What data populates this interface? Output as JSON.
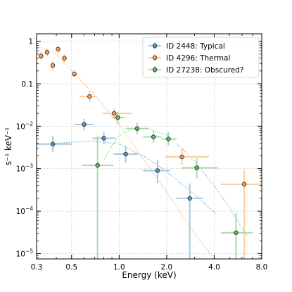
{
  "chart_data": {
    "type": "scatter",
    "title": "",
    "xlabel": "Energy (keV)",
    "ylabel": "s⁻¹ keV⁻¹",
    "xscale": "log",
    "yscale": "log",
    "xlim": [
      0.3,
      8.0
    ],
    "ylim": [
      7.5e-06,
      1.5
    ],
    "x_ticks": [
      0.3,
      0.5,
      1.0,
      2.0,
      4.0,
      8.0
    ],
    "x_tick_labels": [
      "0.3",
      "0.5",
      "1.0",
      "2.0",
      "4.0",
      "8.0"
    ],
    "y_ticks": [
      1,
      0.1,
      0.01,
      0.001,
      0.0001,
      1e-05
    ],
    "y_tick_labels": [
      {
        "base": "1",
        "exp": ""
      },
      {
        "base": "0.1",
        "exp": ""
      },
      {
        "base": "10",
        "exp": "−2"
      },
      {
        "base": "10",
        "exp": "−3"
      },
      {
        "base": "10",
        "exp": "−4"
      },
      {
        "base": "10",
        "exp": "−5"
      }
    ],
    "grid": true,
    "legend_position": "top-right",
    "series": [
      {
        "name": "ID 2448: Typical",
        "color": "#1f77b4",
        "points": [
          {
            "x": 0.38,
            "y": 0.0038,
            "xlo": 0.3,
            "xhi": 0.5,
            "ylo": 0.0025,
            "yhi": 0.0058
          },
          {
            "x": 0.6,
            "y": 0.011,
            "xlo": 0.52,
            "xhi": 0.68,
            "ylo": 0.008,
            "yhi": 0.015
          },
          {
            "x": 0.8,
            "y": 0.0052,
            "xlo": 0.68,
            "xhi": 0.95,
            "ylo": 0.0038,
            "yhi": 0.0072
          },
          {
            "x": 1.1,
            "y": 0.0022,
            "xlo": 0.92,
            "xhi": 1.32,
            "ylo": 0.0014,
            "yhi": 0.0034
          },
          {
            "x": 1.75,
            "y": 0.0009,
            "xlo": 1.42,
            "xhi": 2.1,
            "ylo": 0.00045,
            "yhi": 0.0016
          },
          {
            "x": 2.8,
            "y": 0.0002,
            "xlo": 2.3,
            "xhi": 3.4,
            "ylo": 7.5e-06,
            "yhi": 0.00045
          }
        ],
        "model": [
          [
            0.3,
            0.0037
          ],
          [
            0.5,
            0.0042
          ],
          [
            0.7,
            0.0045
          ],
          [
            1.0,
            0.0038
          ],
          [
            1.5,
            0.0018
          ],
          [
            2.0,
            0.00085
          ],
          [
            3.0,
            0.00025
          ],
          [
            3.8,
            0.00011
          ],
          [
            4.1,
            9e-05
          ]
        ]
      },
      {
        "name": "ID 4296: Thermal",
        "color": "#ff7f0e",
        "points": [
          {
            "x": 0.32,
            "y": 0.45,
            "ylo": 0.36,
            "yhi": 0.56
          },
          {
            "x": 0.35,
            "y": 0.55,
            "ylo": 0.45,
            "yhi": 0.67
          },
          {
            "x": 0.38,
            "y": 0.27,
            "ylo": 0.21,
            "yhi": 0.34
          },
          {
            "x": 0.41,
            "y": 0.65,
            "ylo": 0.53,
            "yhi": 0.8
          },
          {
            "x": 0.45,
            "y": 0.4,
            "ylo": 0.32,
            "yhi": 0.5
          },
          {
            "x": 0.52,
            "y": 0.17,
            "ylo": 0.14,
            "yhi": 0.21
          },
          {
            "x": 0.65,
            "y": 0.05,
            "xlo": 0.56,
            "xhi": 0.72,
            "ylo": 0.037,
            "yhi": 0.067
          },
          {
            "x": 0.93,
            "y": 0.02,
            "xlo": 0.78,
            "xhi": 1.2,
            "ylo": 0.015,
            "yhi": 0.027
          },
          {
            "x": 2.5,
            "y": 0.0019,
            "xlo": 1.95,
            "xhi": 3.7,
            "ylo": 0.0012,
            "yhi": 0.003
          },
          {
            "x": 6.2,
            "y": 0.00043,
            "xlo": 4.4,
            "xhi": 8.0,
            "ylo": 7.5e-06,
            "yhi": 0.00095
          }
        ],
        "model": [
          [
            0.3,
            0.78
          ],
          [
            0.4,
            0.5
          ],
          [
            0.5,
            0.2
          ],
          [
            0.7,
            0.055
          ],
          [
            1.0,
            0.011
          ],
          [
            1.5,
            0.0013
          ],
          [
            2.0,
            0.00028
          ],
          [
            3.0,
            3e-05
          ],
          [
            4.0,
            7.5e-06
          ]
        ]
      },
      {
        "name": "ID 27238: Obscured?",
        "color": "#2ca02c",
        "points": [
          {
            "x": 0.73,
            "y": 0.0012,
            "xlo": 0.58,
            "xhi": 0.92,
            "ylo": 7.5e-06,
            "yhi": 0.0058
          },
          {
            "x": 0.98,
            "y": 0.016,
            "xlo": 0.9,
            "xhi": 1.08,
            "ylo": 0.011,
            "yhi": 0.022
          },
          {
            "x": 1.3,
            "y": 0.0088,
            "xlo": 1.1,
            "xhi": 1.55,
            "ylo": 0.0065,
            "yhi": 0.012
          },
          {
            "x": 1.65,
            "y": 0.0056,
            "xlo": 1.42,
            "xhi": 1.85,
            "ylo": 0.004,
            "yhi": 0.0078
          },
          {
            "x": 2.05,
            "y": 0.005,
            "xlo": 1.85,
            "xhi": 2.3,
            "ylo": 0.0035,
            "yhi": 0.0072
          },
          {
            "x": 3.1,
            "y": 0.00105,
            "xlo": 2.5,
            "xhi": 4.2,
            "ylo": 0.0006,
            "yhi": 0.0018
          },
          {
            "x": 5.5,
            "y": 3.1e-05,
            "xlo": 4.4,
            "xhi": 7.0,
            "ylo": 7.5e-06,
            "yhi": 9e-05
          }
        ],
        "model": [
          [
            0.8,
            0.0016
          ],
          [
            0.9,
            0.0035
          ],
          [
            1.0,
            0.006
          ],
          [
            1.2,
            0.0085
          ],
          [
            1.5,
            0.009
          ],
          [
            2.0,
            0.0062
          ],
          [
            2.5,
            0.003
          ],
          [
            3.0,
            0.0015
          ],
          [
            4.0,
            0.0004
          ],
          [
            5.0,
            0.00012
          ],
          [
            6.0,
            4e-05
          ],
          [
            6.5,
            2.5e-05
          ]
        ]
      }
    ]
  }
}
